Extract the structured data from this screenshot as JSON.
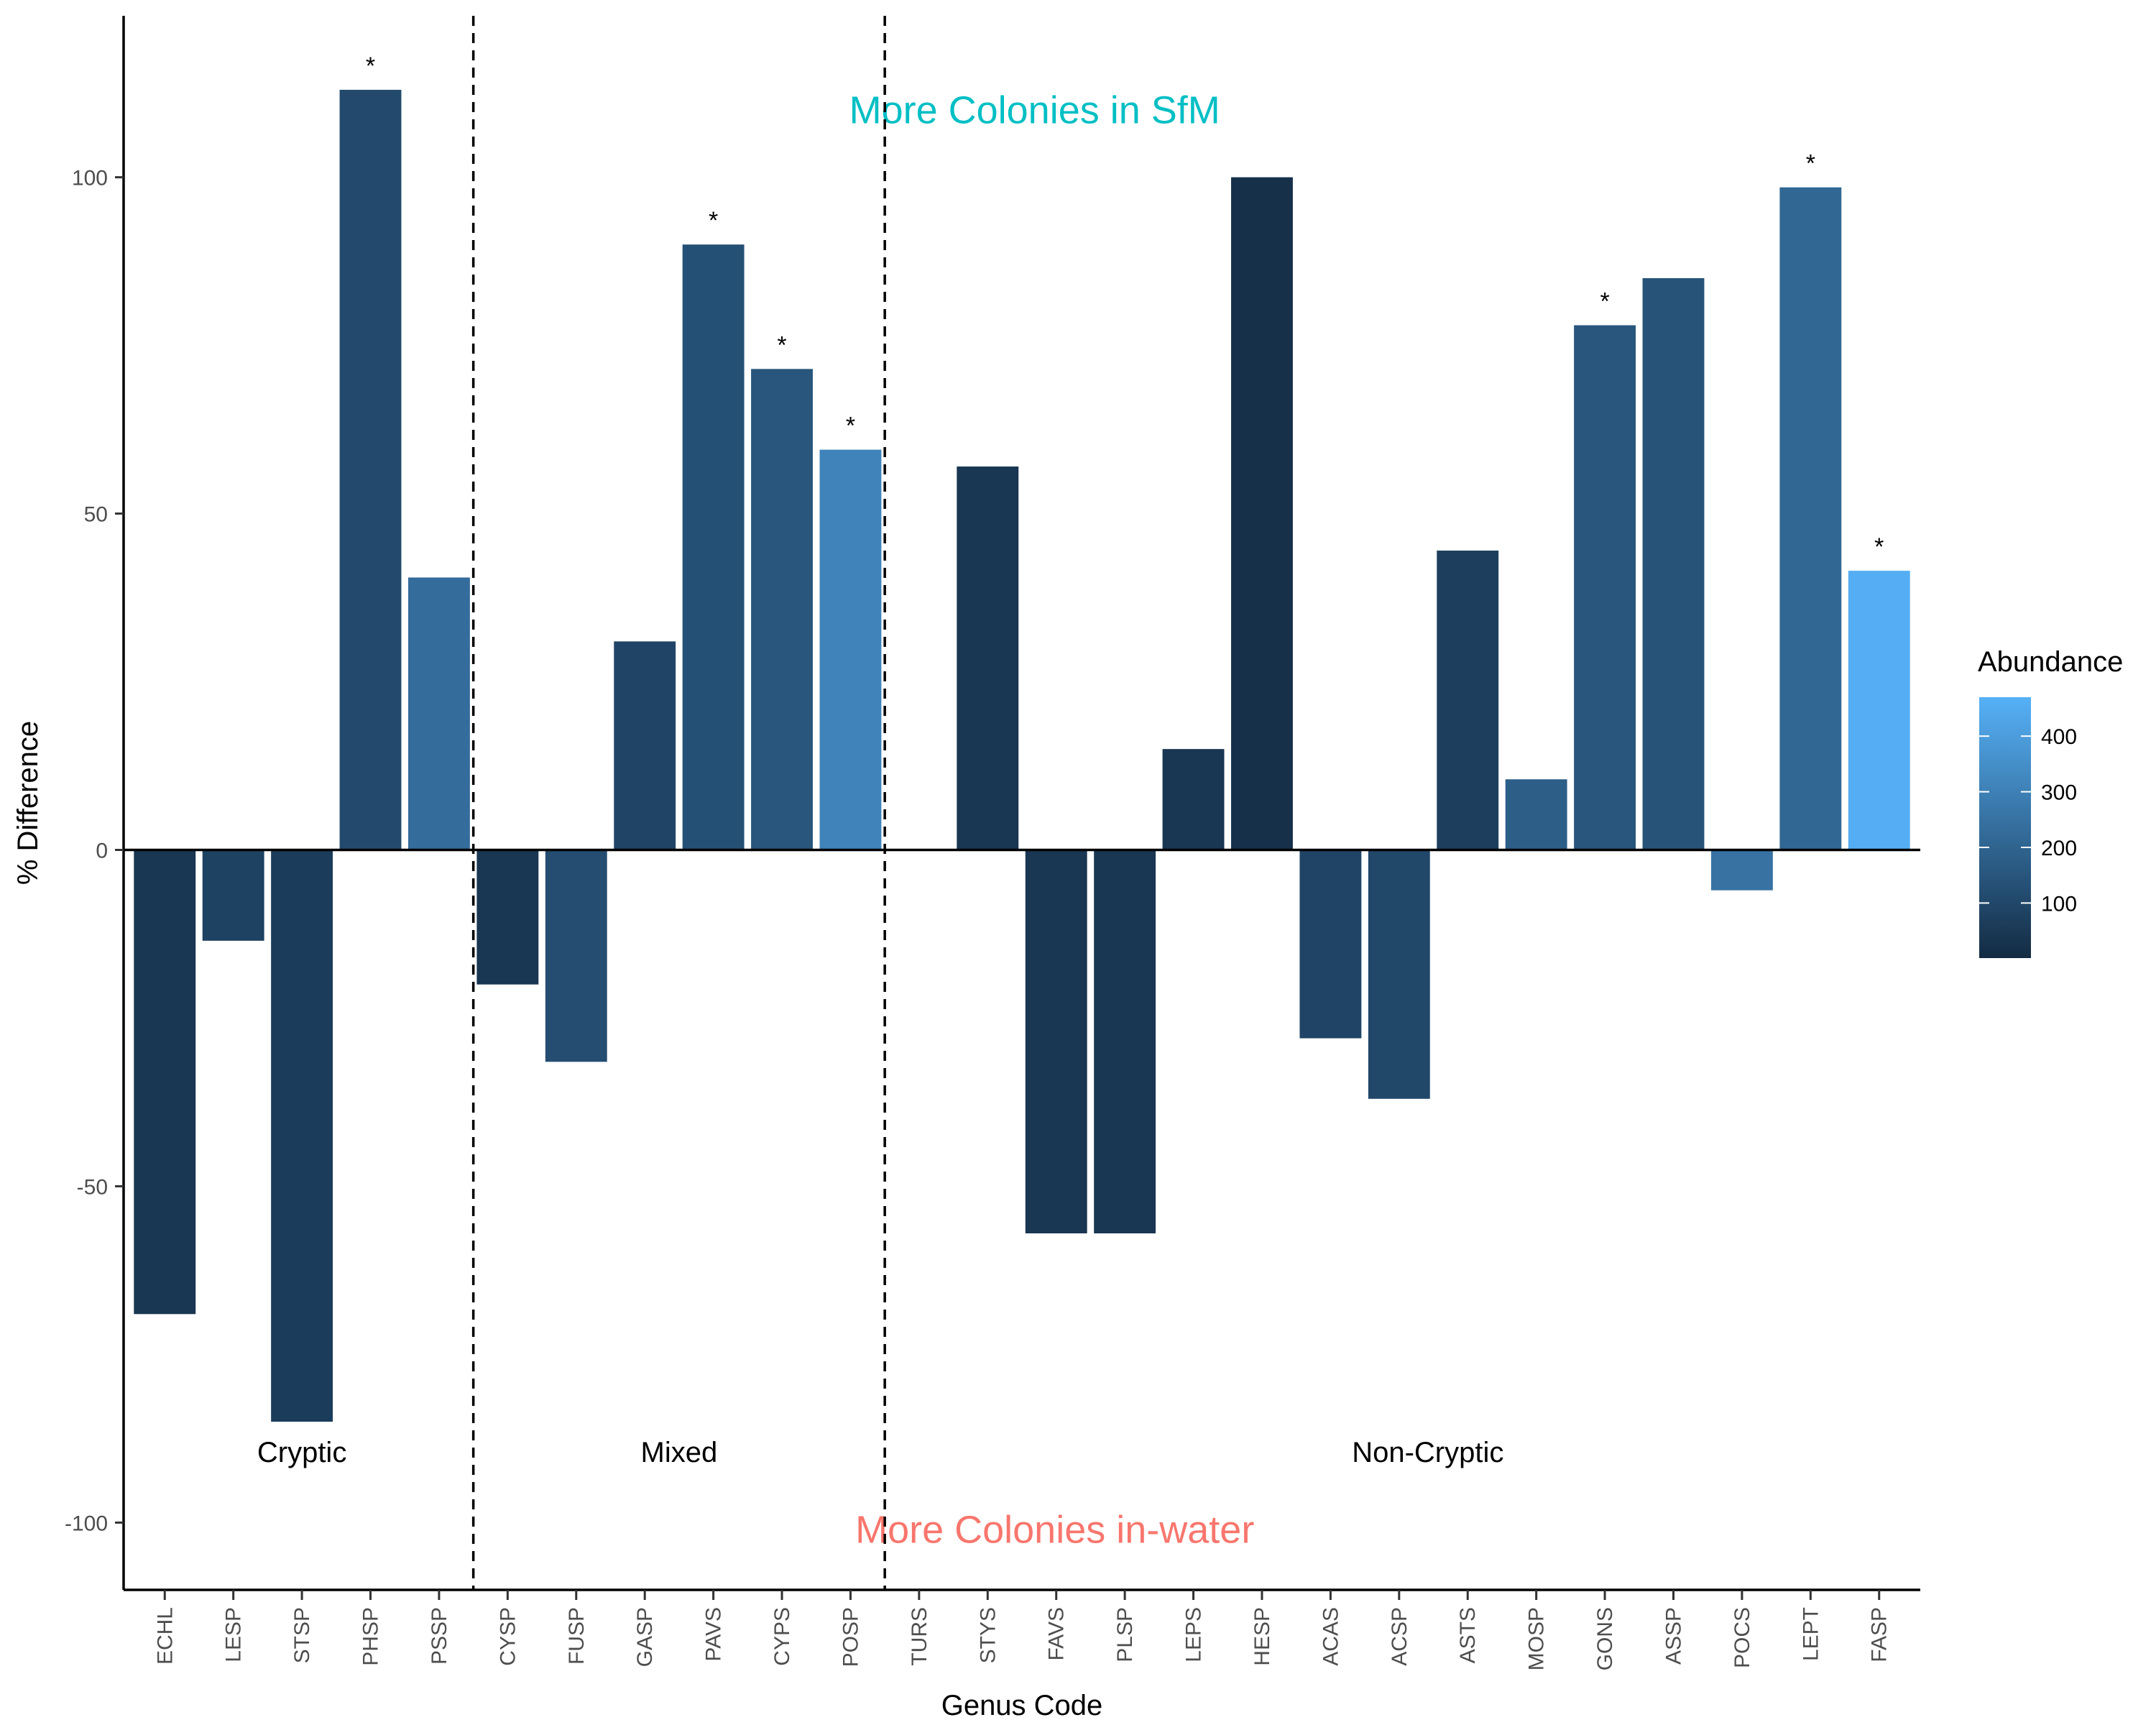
{
  "chart_data": {
    "type": "bar",
    "xlabel": "Genus Code",
    "ylabel": "% Difference",
    "ylim": [
      -110,
      124
    ],
    "yticks": [
      -100,
      -50,
      0,
      50,
      100
    ],
    "grid": false,
    "categories": [
      "ECHL",
      "LESP",
      "STSP",
      "PHSP",
      "PSSP",
      "CYSP",
      "FUSP",
      "GASP",
      "PAVS",
      "CYPS",
      "POSP",
      "TURS",
      "STYS",
      "FAVS",
      "PLSP",
      "LEPS",
      "HESP",
      "ACAS",
      "ACSP",
      "ASTS",
      "MOSP",
      "GONS",
      "ASSP",
      "POCS",
      "LEPT",
      "FASP"
    ],
    "values": [
      -69,
      -13.5,
      -85,
      113,
      40.5,
      -20,
      -31.5,
      31,
      90,
      71.5,
      59.5,
      0,
      57,
      -57,
      -57,
      15,
      100,
      -28,
      -37,
      44.5,
      10.5,
      78,
      85,
      -6,
      98.5,
      41.5
    ],
    "abundance": [
      40,
      80,
      60,
      110,
      230,
      40,
      120,
      90,
      130,
      150,
      310,
      0,
      40,
      40,
      40,
      40,
      20,
      90,
      100,
      70,
      180,
      150,
      140,
      250,
      210,
      460
    ],
    "significant": [
      false,
      false,
      false,
      true,
      false,
      false,
      false,
      false,
      true,
      true,
      true,
      false,
      false,
      false,
      false,
      false,
      false,
      false,
      false,
      false,
      false,
      true,
      false,
      false,
      true,
      true
    ],
    "significance_symbol": "*",
    "groups": [
      {
        "label": "Cryptic",
        "start": 0,
        "end": 4
      },
      {
        "label": "Mixed",
        "start": 5,
        "end": 10
      },
      {
        "label": "Non-Cryptic",
        "start": 11,
        "end": 25
      }
    ],
    "annotations": {
      "top": {
        "text": "More Colonies in SfM",
        "color": "#00BFC4"
      },
      "bottom": {
        "text": "More Colonies in-water",
        "color": "#F8766D"
      }
    },
    "legend": {
      "title": "Abundance",
      "position": "right",
      "ticks": [
        100,
        200,
        300,
        400
      ],
      "range": [
        1,
        470
      ],
      "low_color": "#132B43",
      "high_color": "#56B1F7"
    }
  }
}
